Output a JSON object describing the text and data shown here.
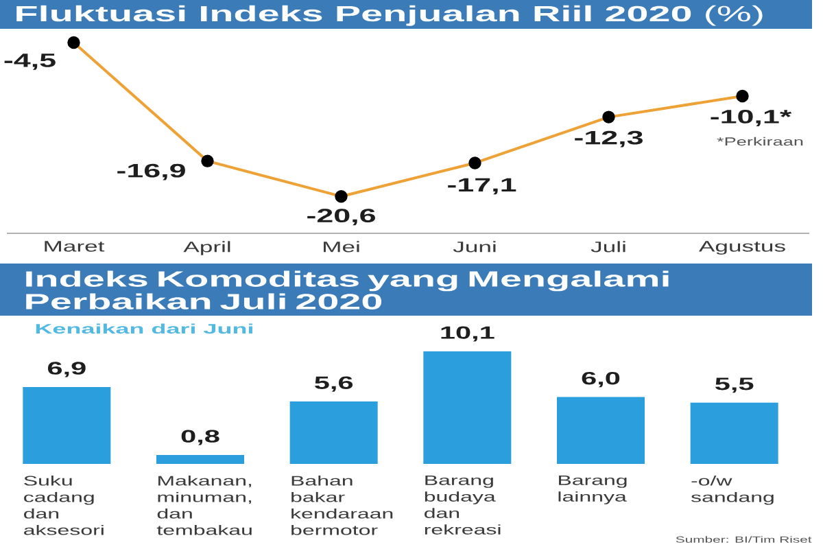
{
  "chart_data": [
    {
      "type": "line",
      "title": "**Fluktuasi Indeks Penjualan Riil 2020** (%)",
      "categories": [
        "Maret",
        "April",
        "Mei",
        "Juni",
        "Juli",
        "Agustus"
      ],
      "values": [
        -4.5,
        -16.9,
        -20.6,
        -17.1,
        -12.3,
        -10.1
      ],
      "value_labels": [
        "-4,5",
        "-16,9",
        "-20,6",
        "-17,1",
        "-12,3",
        "-10,1*"
      ],
      "color": "#eea236",
      "marker": "circle",
      "annotations": [
        "*Perkiraan"
      ]
    },
    {
      "type": "bar",
      "title": "Indeks Komoditas yang Mengalami Perbaikan Juli 2020",
      "subtitle": "Kenaikan dari Juni",
      "categories": [
        "Suku cadang dan aksesori",
        "Makanan, minuman, dan tembakau",
        "Bahan bakar kendaraan bermotor",
        "Barang budaya dan rekreasi",
        "Barang lainnya",
        "-o/w sandang"
      ],
      "values": [
        6.9,
        0.8,
        5.6,
        10.1,
        6.0,
        5.5
      ],
      "value_labels": [
        "6,9",
        "0,8",
        "5,6",
        "10,1",
        "6,0",
        "5,5"
      ],
      "color": "#2b9ede",
      "annotations": [
        "Sumber: BI/Tim Riset"
      ]
    }
  ]
}
